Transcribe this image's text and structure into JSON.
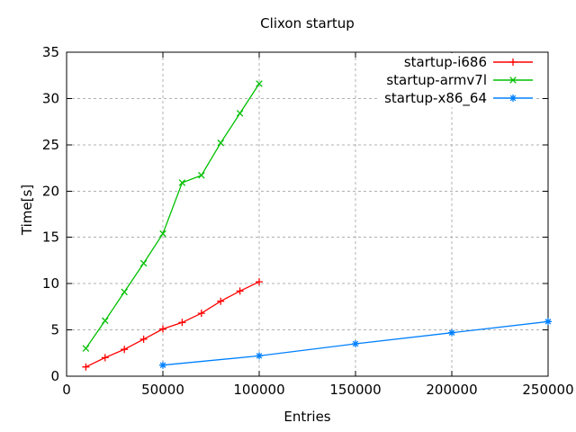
{
  "chart_data": {
    "type": "line",
    "title": "Clixon startup",
    "xlabel": "Entries",
    "ylabel": "Time[s]",
    "xlim": [
      0,
      250000
    ],
    "ylim": [
      0,
      35
    ],
    "xticks": [
      0,
      50000,
      100000,
      150000,
      200000,
      250000
    ],
    "yticks": [
      0,
      5,
      10,
      15,
      20,
      25,
      30,
      35
    ],
    "grid": true,
    "legend_position": "top-right-inside",
    "background_color": "#ffffff",
    "grid_color": "#b0b0b0",
    "axis_color": "#000000",
    "series": [
      {
        "name": "startup-i686",
        "color": "#ff0000",
        "marker": "plus",
        "x": [
          10000,
          20000,
          30000,
          40000,
          50000,
          60000,
          70000,
          80000,
          90000,
          100000
        ],
        "y": [
          1.0,
          2.0,
          2.9,
          4.0,
          5.1,
          5.8,
          6.8,
          8.1,
          9.2,
          10.2
        ]
      },
      {
        "name": "startup-armv7l",
        "color": "#00c000",
        "marker": "cross",
        "x": [
          10000,
          20000,
          30000,
          40000,
          50000,
          60000,
          70000,
          80000,
          90000,
          100000
        ],
        "y": [
          3.0,
          6.0,
          9.1,
          12.2,
          15.4,
          20.9,
          21.7,
          25.2,
          28.4,
          31.6
        ]
      },
      {
        "name": "startup-x86_64",
        "color": "#0080ff",
        "marker": "asterisk",
        "x": [
          50000,
          100000,
          150000,
          200000,
          250000
        ],
        "y": [
          1.2,
          2.2,
          3.5,
          4.7,
          5.9
        ]
      }
    ]
  }
}
